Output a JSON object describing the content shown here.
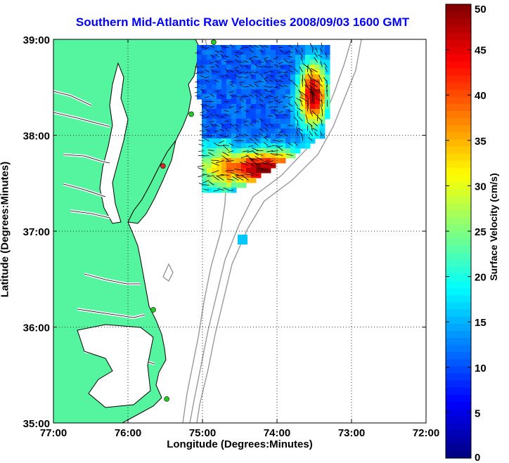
{
  "chart_data": {
    "type": "heatmap",
    "title": "Southern Mid-Atlantic Raw Velocities 2008/09/03 1600 GMT",
    "xlabel": "Longitude (Degrees:Minutes)",
    "ylabel": "Latitude (Degrees:Minutes)",
    "xlim": [
      -77,
      -72
    ],
    "ylim": [
      35,
      39
    ],
    "x_ticks": [
      {
        "value": -77,
        "label": "77:00"
      },
      {
        "value": -76,
        "label": "76:00"
      },
      {
        "value": -75,
        "label": "75:00"
      },
      {
        "value": -74,
        "label": "74:00"
      },
      {
        "value": -73,
        "label": "73:00"
      },
      {
        "value": -72,
        "label": "72:00"
      }
    ],
    "y_ticks": [
      {
        "value": 35,
        "label": "35:00"
      },
      {
        "value": 36,
        "label": "36:00"
      },
      {
        "value": 37,
        "label": "37:00"
      },
      {
        "value": 38,
        "label": "38:00"
      },
      {
        "value": 39,
        "label": "39:00"
      }
    ],
    "grid": true,
    "colorbar": {
      "label": "Surface Velocity (cm/s)",
      "range": [
        0,
        50
      ],
      "ticks": [
        0,
        5,
        10,
        15,
        20,
        25,
        30,
        35,
        40,
        45,
        50
      ],
      "colormap": "jet"
    },
    "stations": [
      {
        "lon": -74.85,
        "lat": 38.97,
        "color": "#22cc22"
      },
      {
        "lon": -75.15,
        "lat": 38.22,
        "color": "#22cc22"
      },
      {
        "lon": -75.53,
        "lat": 37.68,
        "color": "#dd2222"
      },
      {
        "lon": -75.66,
        "lat": 36.18,
        "color": "#22cc22"
      },
      {
        "lon": -75.48,
        "lat": 35.25,
        "color": "#22cc22"
      }
    ],
    "land_color": "#55f5a0"
  }
}
